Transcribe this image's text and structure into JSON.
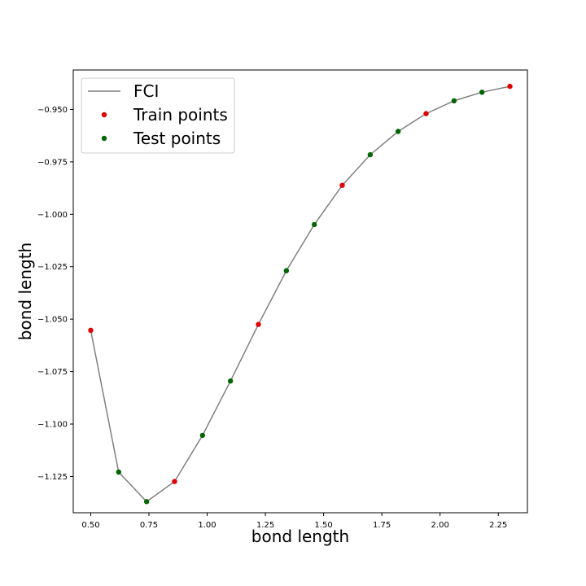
{
  "chart_data": {
    "type": "line",
    "title": "",
    "xlabel": "bond length",
    "ylabel": "bond length",
    "xlim": [
      0.425,
      2.375
    ],
    "ylim": [
      -1.1423,
      -0.9312
    ],
    "xticks": [
      0.5,
      0.75,
      1.0,
      1.25,
      1.5,
      1.75,
      2.0,
      2.25
    ],
    "xtick_labels": [
      "0.50",
      "0.75",
      "1.00",
      "1.25",
      "1.50",
      "1.75",
      "2.00",
      "2.25"
    ],
    "yticks": [
      -0.95,
      -0.975,
      -1.0,
      -1.025,
      -1.05,
      -1.075,
      -1.1,
      -1.125
    ],
    "ytick_labels": [
      "−0.950",
      "−0.975",
      "−1.000",
      "−1.025",
      "−1.050",
      "−1.075",
      "−1.100",
      "−1.125"
    ],
    "grid": false,
    "legend_position": "top-left",
    "series": [
      {
        "name": "FCI",
        "kind": "line",
        "color": "#808080",
        "x": [
          0.5,
          0.62,
          0.74,
          0.86,
          0.98,
          1.1,
          1.22,
          1.34,
          1.46,
          1.58,
          1.7,
          1.82,
          1.94,
          2.06,
          2.18,
          2.3
        ],
        "y": [
          -1.0553,
          -1.1229,
          -1.137,
          -1.1274,
          -1.1054,
          -1.0795,
          -1.0525,
          -1.0269,
          -1.0049,
          -0.9862,
          -0.9716,
          -0.9605,
          -0.952,
          -0.9459,
          -0.9418,
          -0.939
        ]
      },
      {
        "name": "Train points",
        "kind": "scatter",
        "color": "#e00000",
        "x": [
          0.5,
          0.86,
          1.22,
          1.58,
          1.94,
          2.3
        ],
        "y": [
          -1.0553,
          -1.1274,
          -1.0525,
          -0.9862,
          -0.952,
          -0.939
        ]
      },
      {
        "name": "Test points",
        "kind": "scatter",
        "color": "#006400",
        "x": [
          0.62,
          0.74,
          0.98,
          1.1,
          1.34,
          1.46,
          1.7,
          1.82,
          2.06,
          2.18
        ],
        "y": [
          -1.1229,
          -1.137,
          -1.1054,
          -1.0795,
          -1.0269,
          -1.0049,
          -0.9716,
          -0.9605,
          -0.9459,
          -0.9418
        ]
      }
    ]
  }
}
